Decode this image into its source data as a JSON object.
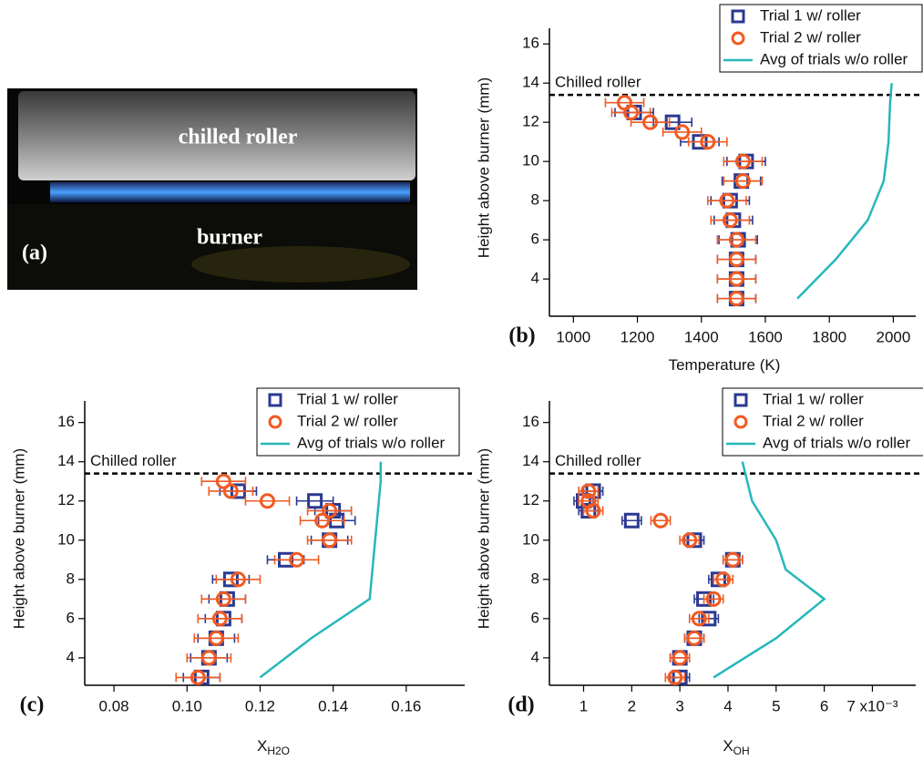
{
  "photo": {
    "label": "(a)",
    "roller_text": "chilled roller",
    "burner_text": "burner"
  },
  "chart_data": [
    {
      "type": "scatter",
      "panel_label": "(b)",
      "xlabel": {
        "main": "Temperature (K)"
      },
      "ylabel": "Height above burner (mm)",
      "xlim": [
        925,
        2070
      ],
      "ylim": [
        2.1,
        16.8
      ],
      "xticks": [
        1000,
        1200,
        1400,
        1600,
        1800,
        2000
      ],
      "yticks": [
        4,
        6,
        8,
        10,
        12,
        14,
        16
      ],
      "hline": {
        "value": 13.4,
        "label": "Chilled roller"
      },
      "series": [
        {
          "name": "Trial 1 w/ roller",
          "color": "#2b3990",
          "marker": "square",
          "xerr": 60,
          "x": [
            1510,
            1510,
            1510,
            1515,
            1500,
            1490,
            1525,
            1540,
            1395,
            1310,
            1190
          ],
          "y": [
            3,
            4,
            5,
            6,
            7,
            8,
            9,
            10,
            11,
            12,
            12.5
          ]
        },
        {
          "name": "Trial 2 w/ roller",
          "color": "#f15a22",
          "marker": "circle",
          "xerr": 60,
          "x": [
            1510,
            1510,
            1510,
            1510,
            1490,
            1480,
            1530,
            1530,
            1420,
            1340,
            1240,
            1180,
            1160
          ],
          "y": [
            3,
            4,
            5,
            6,
            7,
            8,
            9,
            10,
            11,
            11.5,
            12,
            12.5,
            13
          ]
        },
        {
          "name": "Avg of trials w/o roller",
          "color": "#26b7bc",
          "marker": "line",
          "x": [
            1700,
            1820,
            1920,
            1970,
            1985,
            1990,
            1995
          ],
          "y": [
            3,
            5,
            7,
            9,
            11,
            13,
            14
          ]
        }
      ]
    },
    {
      "type": "scatter",
      "panel_label": "(c)",
      "xlabel": {
        "main": "X",
        "sub": "H2O"
      },
      "ylabel": "Height above burner (mm)",
      "xlim": [
        0.072,
        0.176
      ],
      "ylim": [
        2.6,
        17.1
      ],
      "xticks": [
        0.08,
        {
          "value": 0.1,
          "label": "0.10"
        },
        0.12,
        0.14,
        0.16
      ],
      "yticks": [
        4,
        6,
        8,
        10,
        12,
        14,
        16
      ],
      "hline": {
        "value": 13.4,
        "label": "Chilled roller"
      },
      "series": [
        {
          "name": "Trial 1 w/ roller",
          "color": "#2b3990",
          "marker": "square",
          "xerr": 0.005,
          "x": [
            0.104,
            0.106,
            0.108,
            0.11,
            0.111,
            0.112,
            0.127,
            0.139,
            0.141,
            0.14,
            0.135,
            0.114
          ],
          "y": [
            3,
            4,
            5,
            6,
            7,
            8,
            9,
            10,
            11,
            11.5,
            12,
            12.5
          ]
        },
        {
          "name": "Trial 2 w/ roller",
          "color": "#f15a22",
          "marker": "circle",
          "xerr": 0.006,
          "x": [
            0.103,
            0.106,
            0.108,
            0.109,
            0.11,
            0.114,
            0.13,
            0.139,
            0.137,
            0.139,
            0.122,
            0.112,
            0.11
          ],
          "y": [
            3,
            4,
            5,
            6,
            7,
            8,
            9,
            10,
            11,
            11.5,
            12,
            12.5,
            13
          ]
        },
        {
          "name": "Avg of trials w/o roller",
          "color": "#26b7bc",
          "marker": "line",
          "x": [
            0.12,
            0.134,
            0.15,
            0.151,
            0.152,
            0.153,
            0.153
          ],
          "y": [
            3,
            5,
            7,
            9,
            11,
            13,
            14
          ]
        }
      ]
    },
    {
      "type": "scatter",
      "panel_label": "(d)",
      "xlabel": {
        "main": "X",
        "sub": "OH"
      },
      "ylabel": "Height above burner (mm)",
      "xlim": [
        0.29,
        7.9
      ],
      "ylim": [
        2.6,
        17.1
      ],
      "xticks": [
        1,
        2,
        3,
        4,
        5,
        6,
        {
          "value": 7,
          "label": "7 x10⁻³"
        }
      ],
      "yticks": [
        4,
        6,
        8,
        10,
        12,
        14,
        16
      ],
      "hline": {
        "value": 13.4,
        "label": "Chilled roller"
      },
      "series": [
        {
          "name": "Trial 1 w/ roller",
          "color": "#2b3990",
          "marker": "square",
          "xerr": 0.2,
          "x": [
            3.0,
            3.0,
            3.3,
            3.6,
            3.5,
            3.8,
            4.1,
            3.3,
            2.0,
            1.1,
            1.0,
            1.2
          ],
          "y": [
            3,
            4,
            5,
            6,
            7,
            8,
            9,
            10,
            11,
            11.5,
            12,
            12.5
          ]
        },
        {
          "name": "Trial 2 w/ roller",
          "color": "#f15a22",
          "marker": "circle",
          "xerr": 0.2,
          "x": [
            2.9,
            3.0,
            3.3,
            3.4,
            3.7,
            3.9,
            4.1,
            3.2,
            2.6,
            1.2,
            1.1,
            1.1
          ],
          "y": [
            3,
            4,
            5,
            6,
            7,
            8,
            9,
            10,
            11,
            11.5,
            12,
            12.5
          ]
        },
        {
          "name": "Avg of trials w/o roller",
          "color": "#26b7bc",
          "marker": "line",
          "x": [
            3.7,
            5.0,
            6.0,
            5.2,
            5.0,
            4.5,
            4.3
          ],
          "y": [
            3,
            5,
            7,
            8.5,
            10,
            12,
            14
          ]
        }
      ]
    }
  ]
}
